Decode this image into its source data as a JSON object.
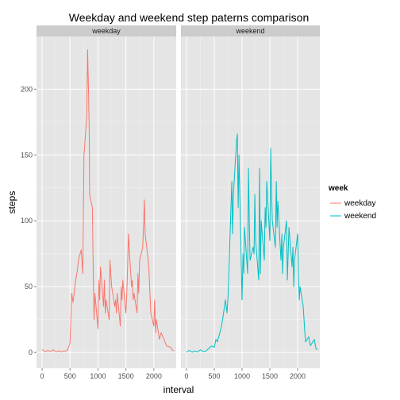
{
  "chart_data": {
    "type": "line",
    "title": "Weekday and weekend step paterns comparison",
    "xlabel": "interval",
    "ylabel": "steps",
    "facets": [
      "weekday",
      "weekend"
    ],
    "xlim": [
      -100,
      2400
    ],
    "ylim": [
      -12,
      240
    ],
    "xticks": [
      0,
      500,
      1000,
      1500,
      2000
    ],
    "yticks": [
      0,
      50,
      100,
      150,
      200
    ],
    "grid": true,
    "legend": {
      "title": "week",
      "position": "right",
      "entries": [
        "weekday",
        "weekend"
      ]
    },
    "colors": {
      "weekday": "#F8766D",
      "weekend": "#00BFC4",
      "panel": "#E5E5E5",
      "strip": "#CCCCCC",
      "grid": "#FFFFFF"
    },
    "series": [
      {
        "name": "weekday",
        "x": [
          0,
          50,
          100,
          150,
          200,
          250,
          300,
          350,
          400,
          450,
          500,
          530,
          555,
          600,
          630,
          650,
          700,
          730,
          750,
          800,
          815,
          830,
          845,
          850,
          900,
          915,
          930,
          945,
          1000,
          1015,
          1030,
          1045,
          1100,
          1115,
          1130,
          1145,
          1200,
          1215,
          1230,
          1245,
          1300,
          1315,
          1330,
          1345,
          1400,
          1415,
          1430,
          1445,
          1500,
          1515,
          1530,
          1545,
          1600,
          1615,
          1630,
          1645,
          1700,
          1715,
          1730,
          1745,
          1800,
          1815,
          1830,
          1845,
          1900,
          1915,
          1930,
          1945,
          2000,
          2015,
          2030,
          2045,
          2100,
          2130,
          2200,
          2230,
          2300,
          2330,
          2355
        ],
        "values": [
          2.3,
          0.5,
          1.5,
          0.8,
          2,
          0.5,
          1.2,
          0.6,
          1,
          1.5,
          7,
          45,
          38,
          55,
          62,
          70,
          78,
          60,
          150,
          180,
          230,
          200,
          165,
          120,
          110,
          60,
          25,
          45,
          18,
          55,
          40,
          65,
          35,
          55,
          30,
          40,
          25,
          70,
          60,
          50,
          35,
          40,
          30,
          45,
          20,
          50,
          40,
          55,
          30,
          45,
          65,
          90,
          50,
          55,
          40,
          45,
          30,
          60,
          45,
          70,
          80,
          95,
          116,
          90,
          70,
          60,
          45,
          30,
          20,
          40,
          15,
          25,
          10,
          15,
          8,
          5,
          4,
          2,
          1
        ]
      },
      {
        "name": "weekend",
        "x": [
          0,
          50,
          100,
          150,
          200,
          250,
          300,
          350,
          400,
          450,
          500,
          530,
          555,
          600,
          630,
          650,
          700,
          730,
          750,
          800,
          815,
          830,
          845,
          900,
          915,
          930,
          945,
          1000,
          1015,
          1030,
          1045,
          1100,
          1115,
          1130,
          1145,
          1200,
          1215,
          1230,
          1245,
          1300,
          1315,
          1330,
          1345,
          1400,
          1415,
          1430,
          1445,
          1500,
          1515,
          1530,
          1545,
          1600,
          1615,
          1630,
          1645,
          1700,
          1715,
          1730,
          1745,
          1800,
          1815,
          1830,
          1845,
          1900,
          1915,
          1930,
          1945,
          2000,
          2015,
          2030,
          2045,
          2100,
          2115,
          2130,
          2145,
          2200,
          2230,
          2300,
          2330,
          2355
        ],
        "values": [
          0.5,
          1.5,
          0.3,
          1,
          0.5,
          2,
          0.8,
          1,
          3,
          5,
          4,
          10,
          8,
          15,
          20,
          25,
          40,
          30,
          45,
          110,
          130,
          90,
          120,
          160,
          166,
          110,
          150,
          40,
          75,
          60,
          95,
          60,
          140,
          100,
          70,
          80,
          75,
          120,
          85,
          55,
          140,
          60,
          100,
          70,
          110,
          95,
          130,
          85,
          155,
          125,
          100,
          80,
          130,
          95,
          115,
          70,
          90,
          60,
          80,
          100,
          55,
          75,
          95,
          65,
          80,
          50,
          70,
          90,
          60,
          40,
          50,
          35,
          25,
          15,
          8,
          12,
          5,
          10,
          3,
          2
        ]
      }
    ]
  }
}
